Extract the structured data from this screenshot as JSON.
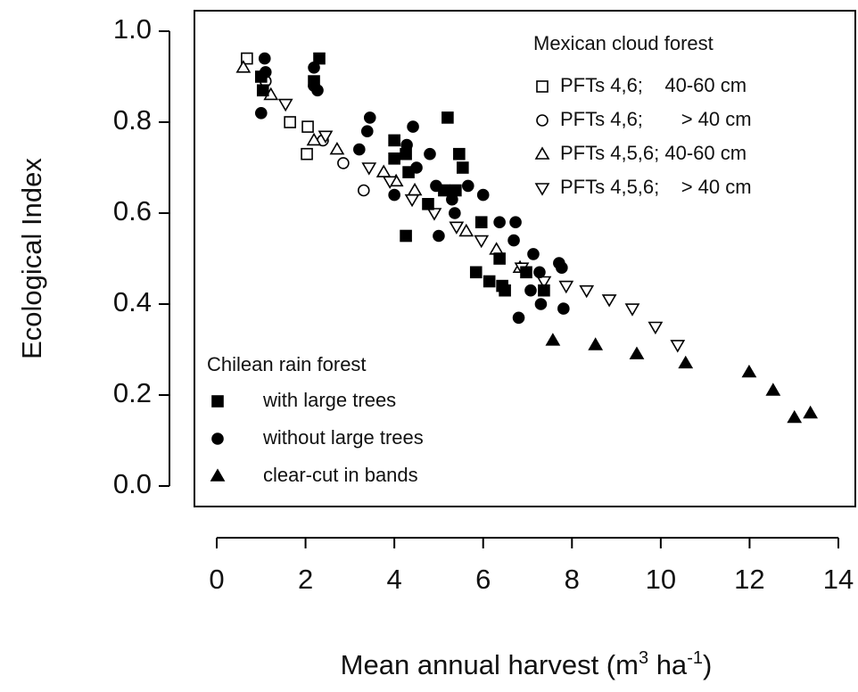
{
  "chart_data": {
    "type": "scatter",
    "xlabel": [
      "Mean annual harvest (m",
      "3",
      " ha",
      "-1",
      ")"
    ],
    "ylabel": "Ecological Index",
    "xlim": [
      0,
      14
    ],
    "xticks": [
      0,
      2,
      4,
      6,
      8,
      10,
      12,
      14
    ],
    "ylim": [
      0,
      1
    ],
    "yticks": [
      {
        "value": 0,
        "label": "0.0"
      },
      {
        "value": 0.2,
        "label": "0.2"
      },
      {
        "value": 0.4,
        "label": "0.4"
      },
      {
        "value": 0.6,
        "label": "0.6"
      },
      {
        "value": 0.8,
        "label": "0.8"
      },
      {
        "value": 1,
        "label": "1.0"
      }
    ],
    "color": "#000000",
    "groups": [
      {
        "title": "Mexican cloud forest",
        "legend": "upper right",
        "series": [
          {
            "name": "PFTs 4,6;    40-60 cm",
            "marker": "square",
            "filled": false,
            "x": [
              0.68,
              1.65,
              2.05,
              2.03
            ],
            "y": [
              0.94,
              0.8,
              0.79,
              0.73
            ]
          },
          {
            "name": "PFTs 4,6;       > 40 cm",
            "marker": "circle",
            "filled": false,
            "x": [
              1.1,
              2.39,
              2.85,
              3.31
            ],
            "y": [
              0.89,
              0.76,
              0.71,
              0.65
            ]
          },
          {
            "name": "PFTs 4,5,6; 40-60 cm",
            "marker": "triangle-up",
            "filled": false,
            "x": [
              0.6,
              1.22,
              2.19,
              2.71,
              3.76,
              4.04,
              4.46,
              5.62,
              6.3,
              6.83
            ],
            "y": [
              0.92,
              0.86,
              0.76,
              0.74,
              0.69,
              0.67,
              0.65,
              0.56,
              0.52,
              0.48
            ]
          },
          {
            "name": "PFTs 4,5,6;    > 40 cm",
            "marker": "triangle-down",
            "filled": false,
            "x": [
              1.55,
              2.45,
              3.43,
              3.9,
              4.4,
              4.9,
              5.4,
              5.96,
              6.87,
              7.37,
              7.87,
              8.33,
              8.84,
              9.36,
              9.88,
              10.38
            ],
            "y": [
              0.84,
              0.77,
              0.7,
              0.67,
              0.63,
              0.6,
              0.57,
              0.54,
              0.48,
              0.45,
              0.44,
              0.43,
              0.41,
              0.39,
              0.35,
              0.31
            ]
          }
        ]
      },
      {
        "title": "Chilean rain forest",
        "legend": "lower left",
        "series": [
          {
            "name": "with large trees",
            "marker": "square",
            "filled": true,
            "x": [
              1.0,
              2.31,
              2.19,
              1.04,
              4.0,
              4.0,
              4.32,
              4.26,
              5.2,
              5.46,
              5.54,
              5.12,
              5.38,
              4.76,
              4.26,
              5.96,
              5.84,
              6.14,
              6.43,
              6.49,
              6.37,
              6.97,
              7.37
            ],
            "y": [
              0.9,
              0.94,
              0.89,
              0.87,
              0.76,
              0.72,
              0.69,
              0.73,
              0.81,
              0.73,
              0.7,
              0.65,
              0.65,
              0.62,
              0.55,
              0.58,
              0.47,
              0.45,
              0.44,
              0.43,
              0.5,
              0.47,
              0.43
            ]
          },
          {
            "name": "without large trees",
            "marker": "circle",
            "filled": true,
            "x": [
              1.08,
              1.1,
              1.0,
              2.19,
              2.27,
              2.19,
              3.45,
              3.39,
              3.21,
              4.0,
              4.42,
              4.28,
              4.5,
              4.8,
              4.94,
              5.3,
              5.66,
              5.36,
              5.0,
              6.0,
              6.37,
              6.73,
              6.69,
              7.13,
              7.07,
              6.8,
              7.3,
              7.77,
              7.71,
              7.81,
              7.27
            ],
            "y": [
              0.94,
              0.91,
              0.82,
              0.88,
              0.87,
              0.92,
              0.81,
              0.78,
              0.74,
              0.64,
              0.79,
              0.75,
              0.7,
              0.73,
              0.66,
              0.63,
              0.66,
              0.6,
              0.55,
              0.64,
              0.58,
              0.58,
              0.54,
              0.51,
              0.43,
              0.37,
              0.4,
              0.48,
              0.49,
              0.39,
              0.47
            ]
          },
          {
            "name": "clear-cut in bands",
            "marker": "triangle-up",
            "filled": true,
            "x": [
              7.57,
              8.53,
              9.46,
              10.56,
              11.99,
              12.53,
              13.01,
              13.37
            ],
            "y": [
              0.32,
              0.31,
              0.29,
              0.27,
              0.25,
              0.21,
              0.15,
              0.16
            ]
          }
        ]
      }
    ]
  }
}
